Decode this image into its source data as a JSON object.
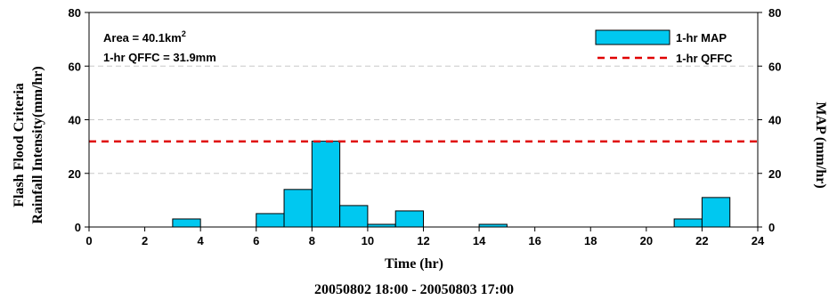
{
  "chart_data": {
    "type": "bar",
    "info": {
      "area_prefix": "Area = 40.1km",
      "area_sup": "2",
      "qffc_text": "1-hr QFFC = 31.9mm"
    },
    "xlabel": "Time (hr)",
    "period": "20050802 18:00 -  20050803 17:00",
    "ylabel_left_line1": "Flash Flood Criteria",
    "ylabel_left_line2": "Rainfall Intensity(mm/hr)",
    "ylabel_right": "MAP (mm/hr)",
    "xlim": [
      0,
      24
    ],
    "ylim": [
      0,
      80
    ],
    "x_ticks": [
      0,
      2,
      4,
      6,
      8,
      10,
      12,
      14,
      16,
      18,
      20,
      22,
      24
    ],
    "y_ticks": [
      0,
      20,
      40,
      60,
      80
    ],
    "grid": "horizontal dashed",
    "legend_position": "top-right",
    "series": [
      {
        "name": "1-hr MAP",
        "kind": "bar",
        "color": "#00c8f0",
        "bins": [
          {
            "start": 3,
            "end": 4,
            "value": 3
          },
          {
            "start": 6,
            "end": 7,
            "value": 5
          },
          {
            "start": 7,
            "end": 8,
            "value": 14
          },
          {
            "start": 8,
            "end": 9,
            "value": 32
          },
          {
            "start": 9,
            "end": 10,
            "value": 8
          },
          {
            "start": 10,
            "end": 11,
            "value": 1
          },
          {
            "start": 11,
            "end": 12,
            "value": 6
          },
          {
            "start": 14,
            "end": 15,
            "value": 1
          },
          {
            "start": 21,
            "end": 22,
            "value": 3
          },
          {
            "start": 22,
            "end": 23,
            "value": 11
          }
        ]
      },
      {
        "name": "1-hr QFFC",
        "kind": "threshold-line",
        "color": "#e00000",
        "value": 31.9
      }
    ]
  }
}
